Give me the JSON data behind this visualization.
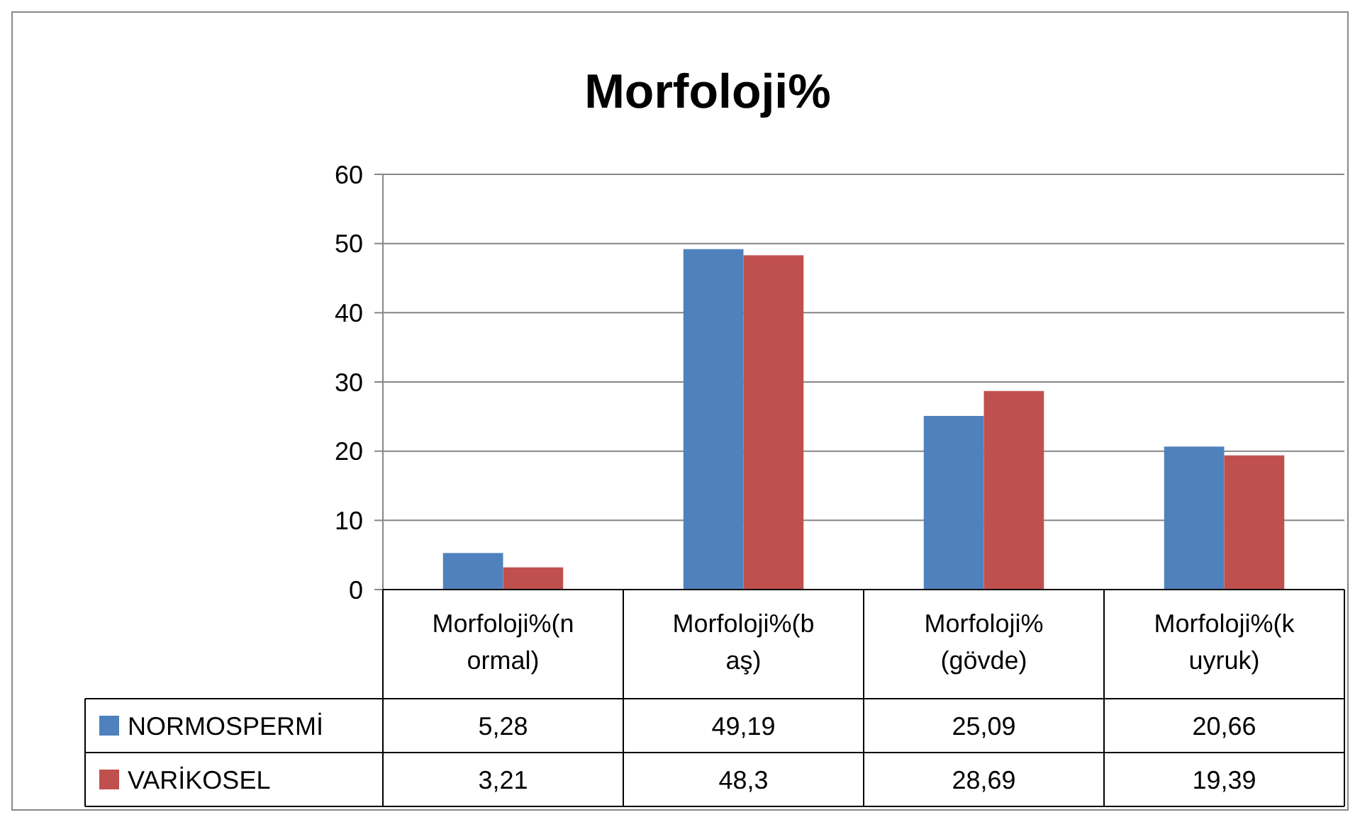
{
  "chart_data": {
    "type": "bar",
    "title": "Morfoloji%",
    "categories": [
      "Morfoloji%(normal)",
      "Morfoloji%(baş)",
      "Morfoloji% (gövde)",
      "Morfoloji%(kuyruk)"
    ],
    "series": [
      {
        "name": "NORMOSPERMİ",
        "color": "#4f81bd",
        "values": [
          5.28,
          49.19,
          25.09,
          20.66
        ],
        "value_labels": [
          "5,28",
          "49,19",
          "25,09",
          "20,66"
        ]
      },
      {
        "name": "VARİKOSEL",
        "color": "#c0504d",
        "values": [
          3.21,
          48.3,
          28.69,
          19.39
        ],
        "value_labels": [
          "3,21",
          "48,3",
          "28,69",
          "19,39"
        ]
      }
    ],
    "ylim": [
      0,
      60
    ],
    "yticks": [
      0,
      10,
      20,
      30,
      40,
      50,
      60
    ],
    "grid": "y",
    "legend": "bottom"
  }
}
